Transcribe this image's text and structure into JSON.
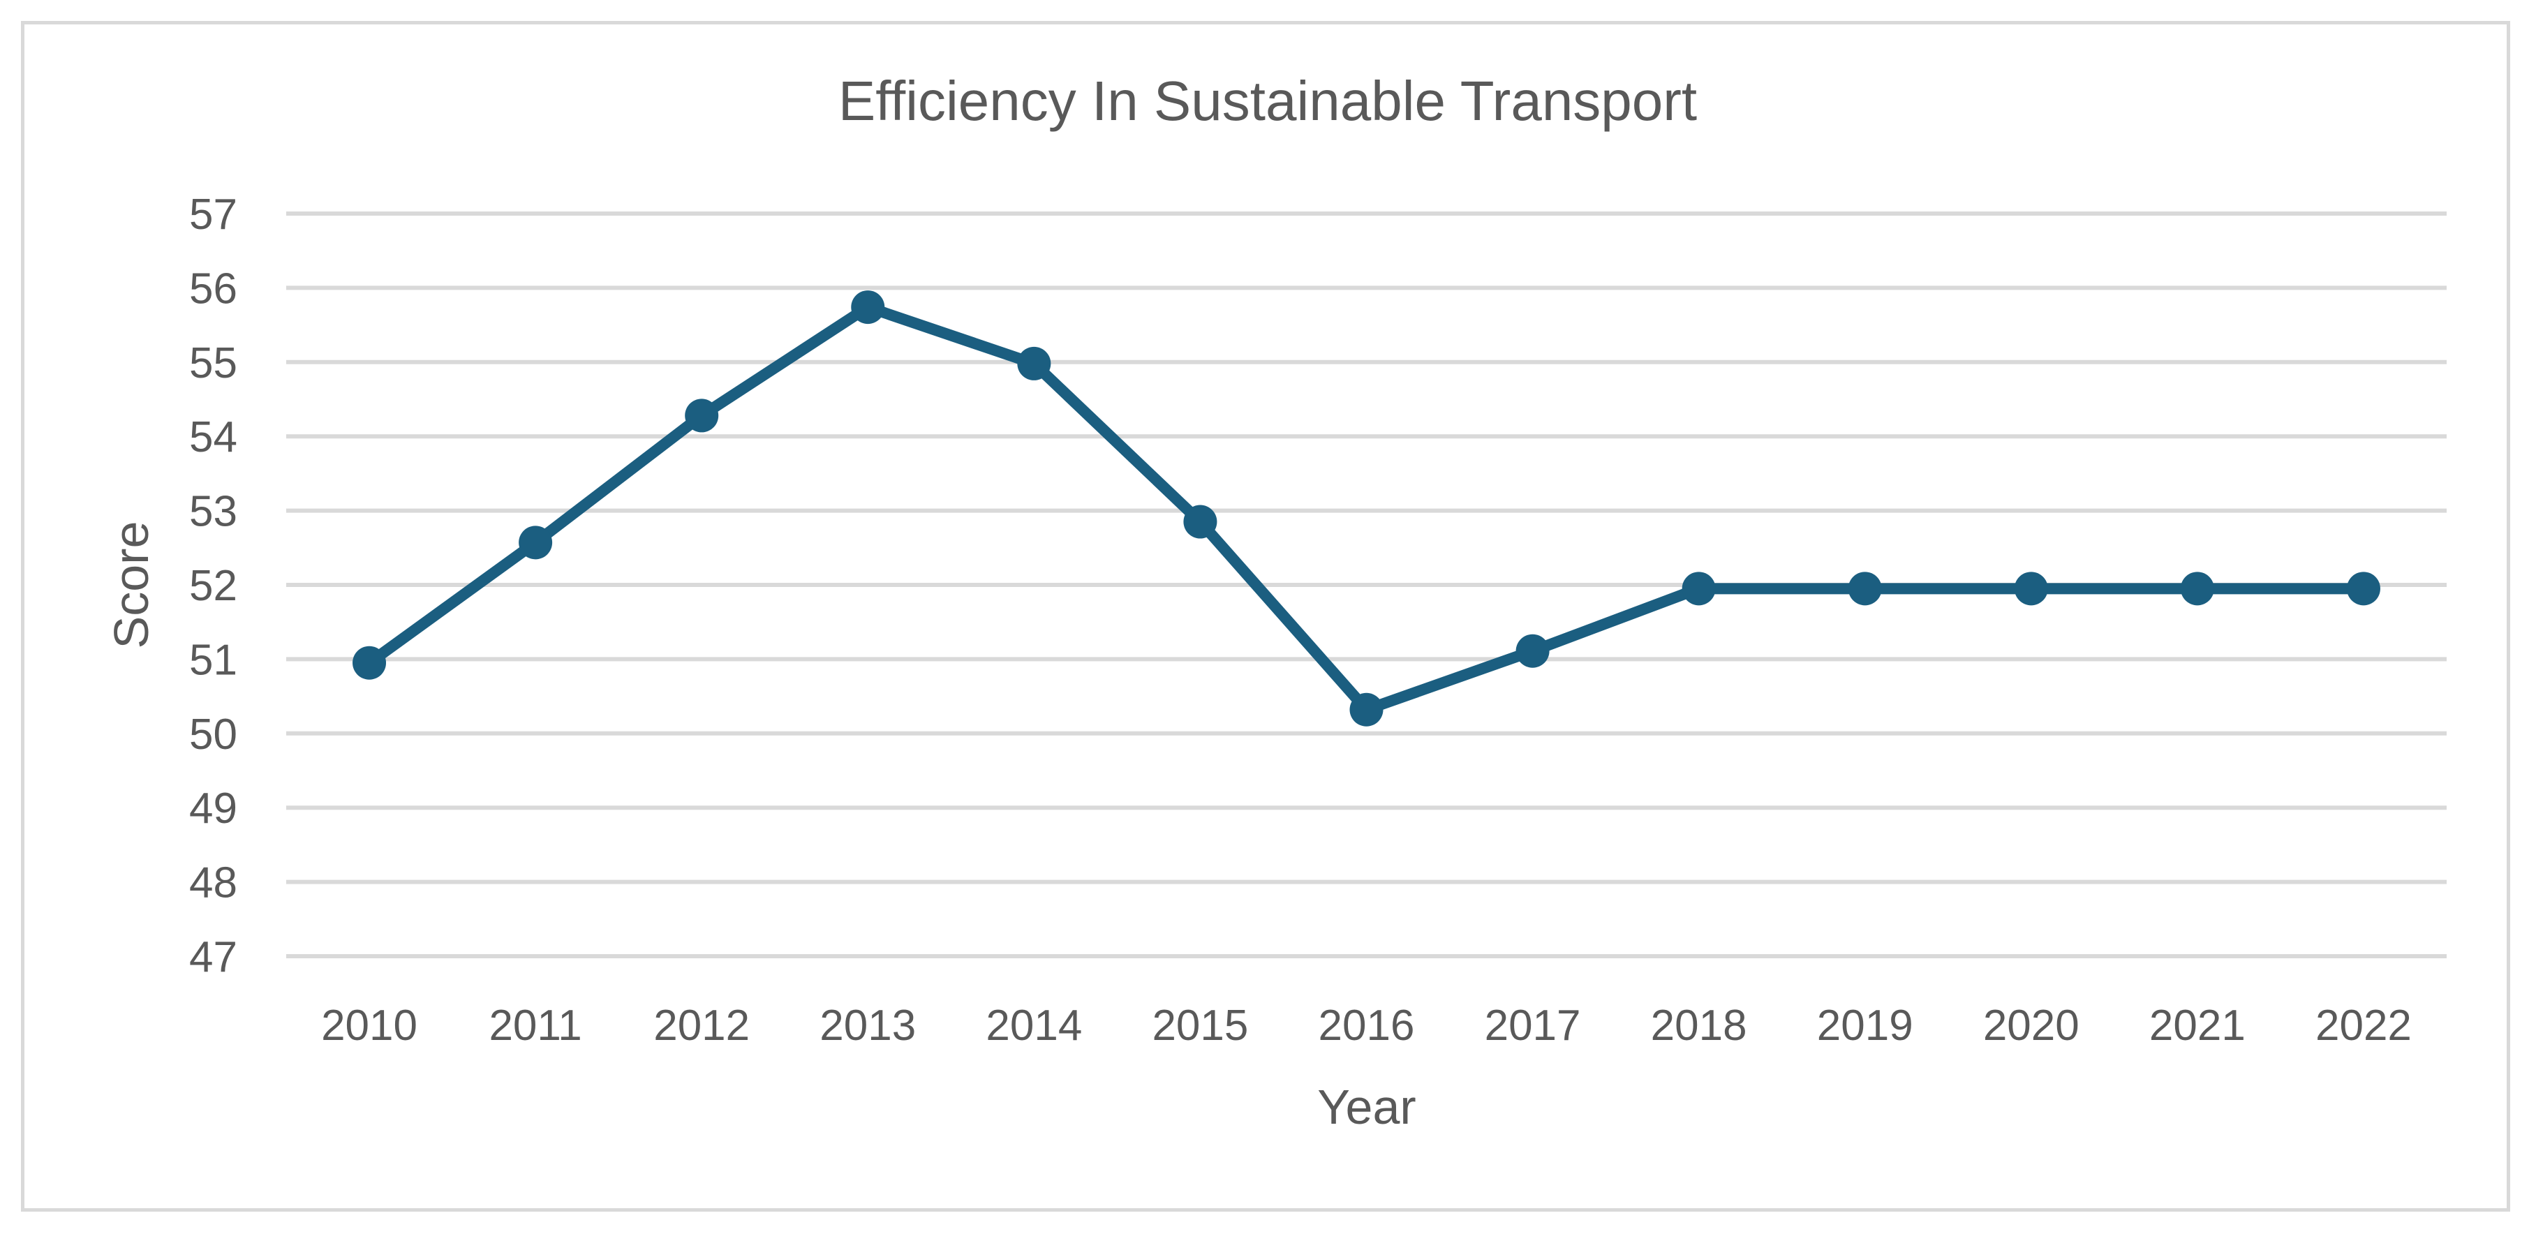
{
  "chart_data": {
    "type": "line",
    "title": "Efficiency In Sustainable Transport",
    "xlabel": "Year",
    "ylabel": "Score",
    "categories": [
      "2010",
      "2011",
      "2012",
      "2013",
      "2014",
      "2015",
      "2016",
      "2017",
      "2018",
      "2019",
      "2020",
      "2021",
      "2022"
    ],
    "series": [
      {
        "name": "Score",
        "values": [
          50.95,
          52.57,
          54.28,
          55.74,
          54.98,
          52.85,
          50.32,
          51.11,
          51.95,
          51.95,
          51.95,
          51.95,
          51.95
        ]
      }
    ],
    "ylim": [
      47,
      57
    ],
    "yticks": [
      "47",
      "48",
      "49",
      "50",
      "51",
      "52",
      "53",
      "54",
      "55",
      "56",
      "57"
    ],
    "grid": true,
    "legend": "none",
    "colors": {
      "series": "#1b5e80",
      "grid": "#d9d9d9",
      "text": "#595959"
    }
  }
}
